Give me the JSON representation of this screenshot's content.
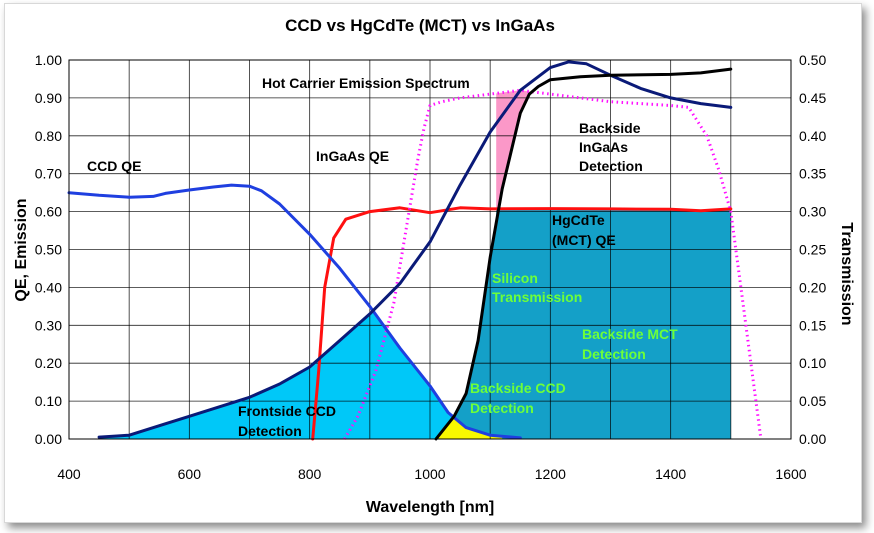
{
  "chart_data": {
    "type": "area",
    "title": "CCD vs HgCdTe (MCT) vs InGaAs",
    "xlabel": "Wavelength [nm]",
    "ylabel": "QE, Emission",
    "y2label": "Transmission",
    "xlim": [
      400,
      1600
    ],
    "ylim": [
      0,
      1
    ],
    "y2lim": [
      0,
      0.5
    ],
    "grid": true,
    "x_ticks": [
      "400",
      "600",
      "800",
      "1000",
      "1200",
      "1400",
      "1600"
    ],
    "y_ticks": [
      "0.00",
      "0.10",
      "0.20",
      "0.30",
      "0.40",
      "0.50",
      "0.60",
      "0.70",
      "0.80",
      "0.90",
      "1.00"
    ],
    "y2_ticks": [
      "0.00",
      "0.05",
      "0.10",
      "0.15",
      "0.20",
      "0.25",
      "0.30",
      "0.35",
      "0.40",
      "0.45",
      "0.50"
    ],
    "series": [
      {
        "name": "CCD QE",
        "color": "#1f3fe0",
        "style": "solid",
        "x": [
          400,
          450,
          500,
          540,
          560,
          600,
          640,
          670,
          700,
          720,
          750,
          800,
          850,
          900,
          950,
          1000,
          1030,
          1060,
          1100,
          1150
        ],
        "y": [
          0.65,
          0.643,
          0.638,
          0.64,
          0.648,
          0.657,
          0.665,
          0.67,
          0.667,
          0.655,
          0.62,
          0.54,
          0.45,
          0.35,
          0.24,
          0.14,
          0.07,
          0.03,
          0.01,
          0.003
        ]
      },
      {
        "name": "Hot Carrier Emission Spectrum",
        "color": "#0a1a78",
        "style": "solid",
        "x": [
          450,
          480,
          500,
          560,
          600,
          650,
          700,
          750,
          800,
          850,
          900,
          950,
          1000,
          1050,
          1100,
          1150,
          1200,
          1230,
          1260,
          1300,
          1350,
          1400,
          1450,
          1500
        ],
        "y": [
          0.005,
          0.008,
          0.01,
          0.04,
          0.06,
          0.085,
          0.11,
          0.145,
          0.19,
          0.26,
          0.33,
          0.41,
          0.52,
          0.67,
          0.81,
          0.92,
          0.98,
          0.995,
          0.99,
          0.96,
          0.925,
          0.9,
          0.885,
          0.875
        ]
      },
      {
        "name": "InGaAs QE",
        "color": "#ff10ff",
        "style": "dotted",
        "x": [
          858,
          880,
          910,
          940,
          960,
          980,
          990,
          1000,
          1020,
          1050,
          1100,
          1150,
          1200,
          1300,
          1400,
          1430,
          1460,
          1480,
          1500,
          1520,
          1540,
          1550
        ],
        "y": [
          0.0,
          0.06,
          0.18,
          0.36,
          0.55,
          0.74,
          0.82,
          0.88,
          0.89,
          0.9,
          0.91,
          0.92,
          0.91,
          0.89,
          0.88,
          0.875,
          0.8,
          0.71,
          0.6,
          0.36,
          0.12,
          0.0
        ]
      },
      {
        "name": "HgCdTe (MCT) QE",
        "color": "#ff1010",
        "style": "solid",
        "x": [
          805,
          815,
          825,
          840,
          860,
          900,
          950,
          1000,
          1050,
          1100,
          1200,
          1300,
          1400,
          1450,
          1500
        ],
        "y": [
          0.0,
          0.18,
          0.4,
          0.53,
          0.58,
          0.6,
          0.61,
          0.597,
          0.61,
          0.607,
          0.608,
          0.607,
          0.606,
          0.602,
          0.607
        ]
      },
      {
        "name": "Silicon Transmission",
        "color": "#000000",
        "style": "solid",
        "axis": "right",
        "x": [
          1010,
          1040,
          1060,
          1080,
          1100,
          1120,
          1150,
          1165,
          1180,
          1200,
          1250,
          1300,
          1400,
          1450,
          1500
        ],
        "y": [
          0.0,
          0.03,
          0.06,
          0.13,
          0.24,
          0.33,
          0.43,
          0.455,
          0.465,
          0.474,
          0.478,
          0.48,
          0.481,
          0.483,
          0.488
        ]
      }
    ],
    "regions": [
      {
        "name": "Frontside CCD Detection",
        "color": "#00c8f8"
      },
      {
        "name": "Backside CCD Detection",
        "color": "#f8f800"
      },
      {
        "name": "Backside MCT Detection",
        "color": "#14a0c8"
      },
      {
        "name": "Backside InGaAs Detection",
        "color": "#fb98c8"
      }
    ],
    "annotations": {
      "ccd_qe": "CCD QE",
      "hot_carrier": "Hot Carrier Emission Spectrum",
      "ingaas_qe": "InGaAs QE",
      "backside_ingaas": [
        "Backside",
        "InGaAs",
        "Detection"
      ],
      "hgcdte": [
        "HgCdTe",
        "(MCT) QE"
      ],
      "silicon": [
        "Silicon",
        "Transmission"
      ],
      "backside_mct": [
        "Backside MCT",
        "Detection"
      ],
      "backside_ccd": [
        "Backside CCD",
        "Detection"
      ],
      "frontside_ccd": [
        "Frontside CCD",
        "Detection"
      ]
    }
  }
}
